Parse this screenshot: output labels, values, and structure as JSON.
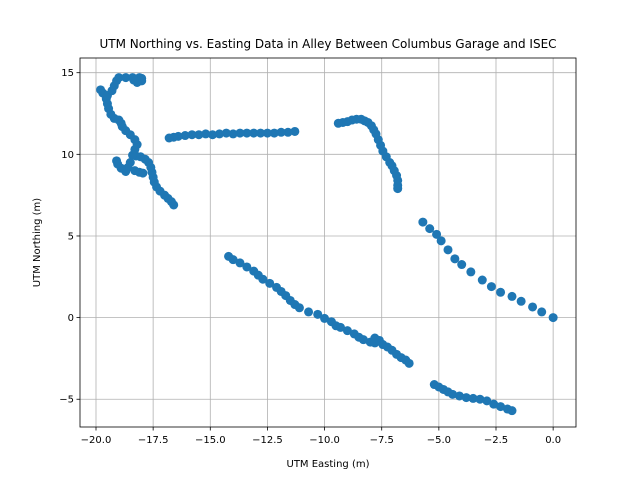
{
  "chart_data": {
    "type": "scatter",
    "title": "UTM Northing vs. Easting Data in Alley Between Columbus Garage and ISEC",
    "xlabel": "UTM Easting (m)",
    "ylabel": "UTM Northing (m)",
    "xlim": [
      -20.7,
      1.0
    ],
    "ylim": [
      -6.7,
      15.9
    ],
    "xticks": [
      -20.0,
      -17.5,
      -15.0,
      -12.5,
      -10.0,
      -7.5,
      -5.0,
      -2.5,
      0.0
    ],
    "xtick_labels": [
      "−20.0",
      "−17.5",
      "−15.0",
      "−12.5",
      "−10.0",
      "−7.5",
      "−5.0",
      "−2.5",
      "0.0"
    ],
    "yticks": [
      -5,
      0,
      5,
      10,
      15
    ],
    "ytick_labels": [
      "−5",
      "0",
      "5",
      "10",
      "15"
    ],
    "grid": true,
    "marker_color": "#1f77b4",
    "series": [
      {
        "points": [
          [
            0.0,
            0.0
          ],
          [
            -0.5,
            0.35
          ],
          [
            -0.9,
            0.65
          ],
          [
            -1.4,
            1.0
          ],
          [
            -1.8,
            1.3
          ],
          [
            -2.3,
            1.55
          ],
          [
            -2.7,
            1.9
          ],
          [
            -3.1,
            2.3
          ],
          [
            -3.6,
            2.8
          ],
          [
            -4.0,
            3.25
          ],
          [
            -4.3,
            3.6
          ],
          [
            -4.6,
            4.15
          ],
          [
            -4.9,
            4.7
          ],
          [
            -5.1,
            5.1
          ],
          [
            -5.4,
            5.45
          ],
          [
            -5.7,
            5.85
          ],
          [
            -6.8,
            7.9
          ],
          [
            -6.8,
            8.1
          ],
          [
            -6.8,
            8.4
          ],
          [
            -6.85,
            8.7
          ],
          [
            -6.95,
            9.0
          ],
          [
            -7.05,
            9.3
          ],
          [
            -7.15,
            9.5
          ],
          [
            -7.3,
            9.85
          ],
          [
            -7.45,
            10.2
          ],
          [
            -7.55,
            10.55
          ],
          [
            -7.65,
            10.9
          ],
          [
            -7.75,
            11.25
          ],
          [
            -7.85,
            11.5
          ],
          [
            -7.95,
            11.75
          ],
          [
            -8.1,
            11.95
          ],
          [
            -8.25,
            12.05
          ],
          [
            -8.4,
            12.15
          ],
          [
            -8.6,
            12.15
          ],
          [
            -8.8,
            12.1
          ],
          [
            -9.0,
            12.0
          ],
          [
            -9.2,
            11.95
          ],
          [
            -9.4,
            11.9
          ],
          [
            -11.3,
            11.4
          ],
          [
            -11.6,
            11.35
          ],
          [
            -11.9,
            11.35
          ],
          [
            -12.2,
            11.3
          ],
          [
            -12.5,
            11.3
          ],
          [
            -12.8,
            11.3
          ],
          [
            -13.1,
            11.3
          ],
          [
            -13.4,
            11.3
          ],
          [
            -13.7,
            11.3
          ],
          [
            -14.0,
            11.25
          ],
          [
            -14.3,
            11.3
          ],
          [
            -14.6,
            11.25
          ],
          [
            -14.9,
            11.2
          ],
          [
            -15.2,
            11.25
          ],
          [
            -15.5,
            11.2
          ],
          [
            -15.8,
            11.2
          ],
          [
            -16.1,
            11.15
          ],
          [
            -16.4,
            11.1
          ],
          [
            -16.6,
            11.05
          ],
          [
            -16.8,
            11.0
          ],
          [
            -16.6,
            6.9
          ],
          [
            -16.7,
            7.1
          ],
          [
            -16.85,
            7.3
          ],
          [
            -17.0,
            7.5
          ],
          [
            -17.2,
            7.75
          ],
          [
            -17.35,
            8.0
          ],
          [
            -17.45,
            8.3
          ],
          [
            -17.5,
            8.6
          ],
          [
            -17.55,
            8.9
          ],
          [
            -17.6,
            9.2
          ],
          [
            -17.7,
            9.5
          ],
          [
            -17.85,
            9.7
          ],
          [
            -18.05,
            9.85
          ],
          [
            -18.25,
            9.9
          ],
          [
            -18.4,
            9.95
          ],
          [
            -18.5,
            9.5
          ],
          [
            -18.6,
            9.2
          ],
          [
            -18.3,
            9.0
          ],
          [
            -18.1,
            8.9
          ],
          [
            -17.95,
            8.85
          ],
          [
            -18.7,
            8.95
          ],
          [
            -18.9,
            9.15
          ],
          [
            -19.05,
            9.4
          ],
          [
            -19.1,
            9.6
          ],
          [
            -18.3,
            10.3
          ],
          [
            -18.2,
            10.6
          ],
          [
            -18.3,
            10.9
          ],
          [
            -18.5,
            11.2
          ],
          [
            -18.7,
            11.45
          ],
          [
            -18.85,
            11.7
          ],
          [
            -18.9,
            11.9
          ],
          [
            -19.0,
            12.1
          ],
          [
            -19.2,
            12.2
          ],
          [
            -19.35,
            12.45
          ],
          [
            -19.45,
            12.8
          ],
          [
            -19.5,
            13.1
          ],
          [
            -19.55,
            13.4
          ],
          [
            -19.7,
            13.75
          ],
          [
            -19.8,
            13.95
          ],
          [
            -19.5,
            13.6
          ],
          [
            -19.3,
            13.9
          ],
          [
            -19.2,
            14.2
          ],
          [
            -19.1,
            14.5
          ],
          [
            -19.0,
            14.7
          ],
          [
            -18.7,
            14.7
          ],
          [
            -18.4,
            14.7
          ],
          [
            -18.1,
            14.7
          ],
          [
            -18.0,
            14.5
          ],
          [
            -18.2,
            14.4
          ],
          [
            -18.0,
            14.65
          ],
          [
            -18.35,
            14.55
          ],
          [
            -14.2,
            3.75
          ],
          [
            -14.0,
            3.55
          ],
          [
            -13.7,
            3.35
          ],
          [
            -13.4,
            3.1
          ],
          [
            -13.1,
            2.85
          ],
          [
            -12.9,
            2.6
          ],
          [
            -12.7,
            2.35
          ],
          [
            -12.4,
            2.1
          ],
          [
            -12.1,
            1.85
          ],
          [
            -11.9,
            1.6
          ],
          [
            -11.7,
            1.35
          ],
          [
            -11.5,
            1.05
          ],
          [
            -11.3,
            0.8
          ],
          [
            -11.1,
            0.6
          ],
          [
            -10.7,
            0.35
          ],
          [
            -10.3,
            0.2
          ],
          [
            -10.0,
            -0.05
          ],
          [
            -9.7,
            -0.25
          ],
          [
            -9.5,
            -0.5
          ],
          [
            -9.3,
            -0.6
          ],
          [
            -9.0,
            -0.8
          ],
          [
            -8.7,
            -1.0
          ],
          [
            -8.5,
            -1.2
          ],
          [
            -8.3,
            -1.35
          ],
          [
            -8.0,
            -1.5
          ],
          [
            -7.8,
            -1.55
          ],
          [
            -7.6,
            -1.4
          ],
          [
            -7.8,
            -1.25
          ],
          [
            -7.45,
            -1.65
          ],
          [
            -7.25,
            -1.8
          ],
          [
            -7.05,
            -2.0
          ],
          [
            -6.85,
            -2.25
          ],
          [
            -6.65,
            -2.45
          ],
          [
            -6.45,
            -2.6
          ],
          [
            -6.3,
            -2.8
          ],
          [
            -5.2,
            -4.1
          ],
          [
            -5.0,
            -4.25
          ],
          [
            -4.8,
            -4.4
          ],
          [
            -4.6,
            -4.55
          ],
          [
            -4.4,
            -4.7
          ],
          [
            -4.1,
            -4.8
          ],
          [
            -3.8,
            -4.9
          ],
          [
            -3.5,
            -4.95
          ],
          [
            -3.2,
            -5.0
          ],
          [
            -2.9,
            -5.1
          ],
          [
            -2.6,
            -5.3
          ],
          [
            -2.3,
            -5.45
          ],
          [
            -2.0,
            -5.6
          ],
          [
            -1.8,
            -5.7
          ]
        ]
      }
    ]
  }
}
